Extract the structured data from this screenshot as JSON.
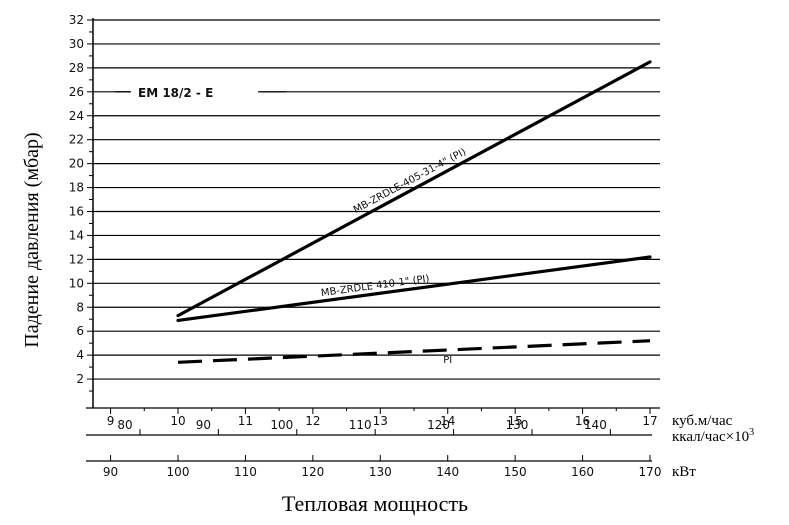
{
  "chart_data": {
    "type": "line",
    "model_label": "EM 18/2 - E",
    "ylabel": "Падение давления (мбар)",
    "xlabel": "Тепловая мощность",
    "ylim": [
      0,
      32
    ],
    "y_ticks": [
      2,
      4,
      6,
      8,
      10,
      12,
      14,
      16,
      18,
      20,
      22,
      24,
      26,
      28,
      30,
      32
    ],
    "grid": "horizontal",
    "x_axes": [
      {
        "unit": "куб.м/час",
        "unit_sup": "",
        "ticks": [
          9,
          10,
          11,
          12,
          13,
          14,
          15,
          16,
          17
        ]
      },
      {
        "unit": "ккал/час×10",
        "unit_sup": "3",
        "ticks": [
          80,
          90,
          100,
          110,
          120,
          130,
          140
        ]
      },
      {
        "unit": "кВт",
        "unit_sup": "",
        "ticks": [
          90,
          100,
          110,
          120,
          130,
          140,
          150,
          160,
          170
        ]
      }
    ],
    "series": [
      {
        "name": "MB-ZRDLE-405-31-4\" (PI)",
        "style": "solid",
        "x": [
          10,
          17
        ],
        "values": [
          7.3,
          28.5
        ]
      },
      {
        "name": "MB-ZRDLE 410-1\" (PI)",
        "style": "solid",
        "x": [
          10,
          17
        ],
        "values": [
          6.9,
          12.2
        ]
      },
      {
        "name": "PI",
        "style": "dashed",
        "x": [
          10,
          17
        ],
        "values": [
          3.4,
          5.2
        ]
      }
    ]
  }
}
